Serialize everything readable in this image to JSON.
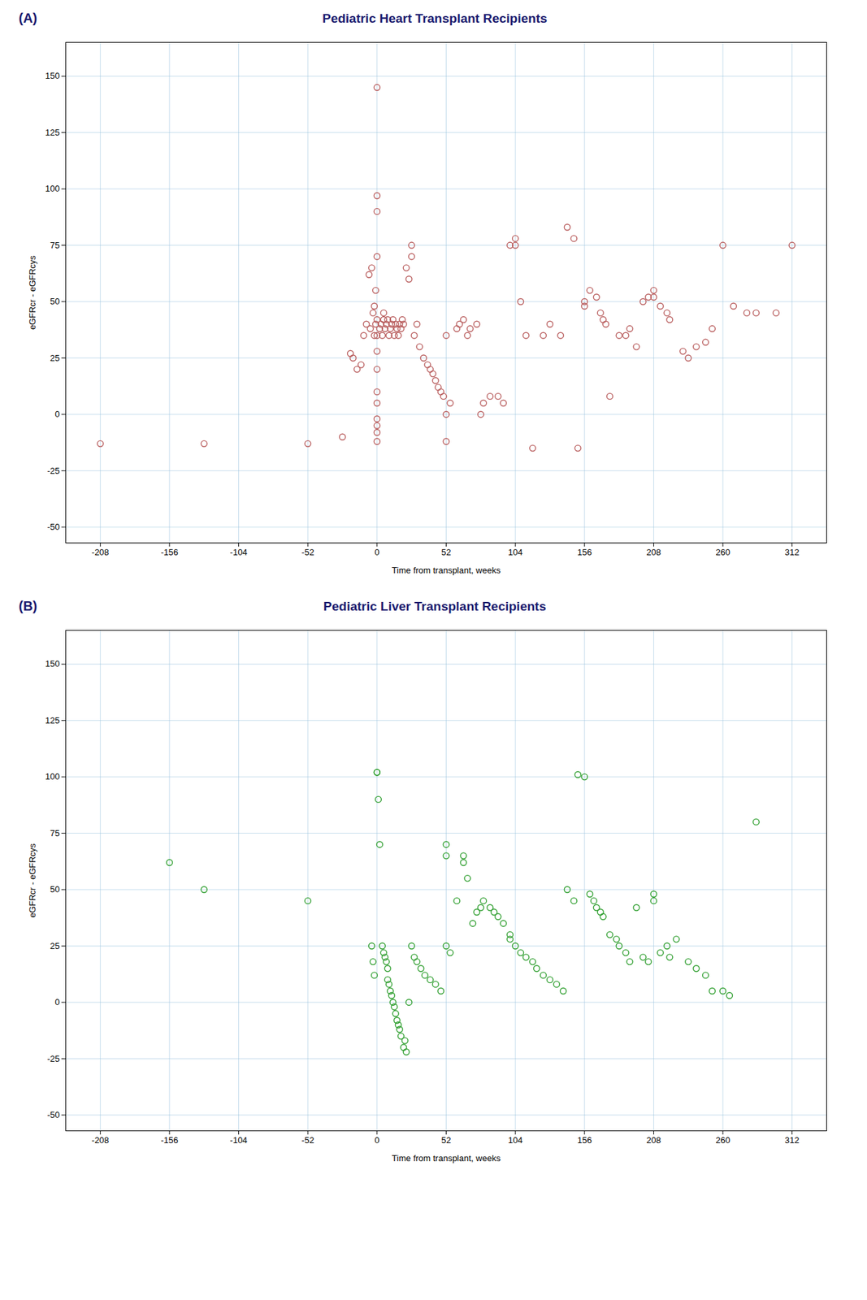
{
  "chart_data": [
    {
      "type": "scatter",
      "title": "Pediatric Heart Transplant Recipients",
      "annotations": [
        "(A)"
      ],
      "xlabel": "Time from transplant, weeks",
      "ylabel": "eGFRcr - eGFRcys",
      "xlim": [
        -234,
        338
      ],
      "ylim": [
        -57,
        165
      ],
      "xticks": [
        -208,
        -156,
        -104,
        -52,
        0,
        52,
        104,
        156,
        208,
        260,
        312
      ],
      "yticks": [
        -50,
        -25,
        0,
        25,
        50,
        75,
        100,
        125,
        150
      ],
      "grid": true,
      "color": "#b85c5c",
      "marker": "circle",
      "x": [
        -208,
        -130,
        -52,
        -26,
        -20,
        -18,
        -15,
        -12,
        -10,
        -8,
        -6,
        -5,
        -4,
        -3,
        -2,
        -2,
        -1,
        -1,
        0,
        0,
        0,
        0,
        0,
        0,
        0,
        0,
        0,
        0,
        0,
        0,
        0,
        0,
        2,
        3,
        4,
        5,
        5,
        6,
        7,
        8,
        9,
        10,
        11,
        12,
        13,
        14,
        15,
        16,
        17,
        18,
        19,
        20,
        22,
        24,
        26,
        26,
        28,
        30,
        32,
        35,
        38,
        40,
        42,
        44,
        46,
        48,
        50,
        52,
        52,
        52,
        55,
        60,
        62,
        65,
        68,
        70,
        75,
        78,
        80,
        85,
        91,
        95,
        100,
        104,
        104,
        108,
        112,
        117,
        125,
        130,
        138,
        143,
        148,
        151,
        156,
        156,
        160,
        165,
        168,
        170,
        172,
        175,
        182,
        187,
        190,
        195,
        200,
        204,
        208,
        208,
        213,
        218,
        220,
        230,
        234,
        240,
        247,
        252,
        260,
        268,
        278,
        285,
        300,
        312
      ],
      "values": [
        -13,
        -13,
        -13,
        -10,
        27,
        25,
        20,
        22,
        35,
        40,
        62,
        38,
        65,
        45,
        35,
        48,
        40,
        55,
        145,
        97,
        90,
        70,
        42,
        35,
        28,
        20,
        10,
        5,
        -2,
        -5,
        -8,
        -12,
        38,
        40,
        35,
        42,
        45,
        38,
        40,
        42,
        35,
        38,
        40,
        42,
        35,
        40,
        38,
        35,
        40,
        38,
        42,
        40,
        65,
        60,
        70,
        75,
        35,
        40,
        30,
        25,
        22,
        20,
        18,
        15,
        12,
        10,
        8,
        35,
        0,
        -12,
        5,
        38,
        40,
        42,
        35,
        38,
        40,
        0,
        5,
        8,
        8,
        5,
        75,
        75,
        78,
        50,
        35,
        -15,
        35,
        40,
        35,
        83,
        78,
        -15,
        50,
        48,
        55,
        52,
        45,
        42,
        40,
        8,
        35,
        35,
        38,
        30,
        50,
        52,
        55,
        52,
        48,
        45,
        42,
        28,
        25,
        30,
        32,
        38,
        75,
        48,
        45,
        45,
        45,
        75
      ]
    },
    {
      "type": "scatter",
      "title": "Pediatric Liver Transplant Recipients",
      "annotations": [
        "(B)"
      ],
      "xlabel": "Time from transplant, weeks",
      "ylabel": "eGFRcr - eGFRcys",
      "xlim": [
        -234,
        338
      ],
      "ylim": [
        -57,
        165
      ],
      "xticks": [
        -208,
        -156,
        -104,
        -52,
        0,
        52,
        104,
        156,
        208,
        260,
        312
      ],
      "yticks": [
        -50,
        -25,
        0,
        25,
        50,
        75,
        100,
        125,
        150
      ],
      "grid": true,
      "color": "#2e9e2e",
      "marker": "circle",
      "x": [
        -156,
        -130,
        -52,
        -4,
        -3,
        -2,
        0,
        0,
        1,
        2,
        4,
        5,
        6,
        7,
        8,
        8,
        9,
        10,
        11,
        12,
        13,
        14,
        15,
        16,
        17,
        18,
        20,
        21,
        22,
        24,
        26,
        28,
        30,
        33,
        36,
        40,
        44,
        48,
        52,
        52,
        52,
        55,
        60,
        65,
        65,
        68,
        72,
        75,
        78,
        80,
        85,
        88,
        91,
        95,
        100,
        100,
        104,
        108,
        112,
        117,
        120,
        125,
        130,
        135,
        140,
        143,
        148,
        151,
        156,
        160,
        163,
        165,
        168,
        170,
        175,
        180,
        182,
        187,
        190,
        195,
        200,
        204,
        208,
        208,
        213,
        218,
        220,
        225,
        234,
        240,
        247,
        252,
        260,
        265,
        285
      ],
      "values": [
        62,
        50,
        45,
        25,
        18,
        12,
        102,
        102,
        90,
        70,
        25,
        22,
        20,
        18,
        15,
        10,
        8,
        5,
        3,
        0,
        -2,
        -5,
        -8,
        -10,
        -12,
        -15,
        -20,
        -17,
        -22,
        0,
        25,
        20,
        18,
        15,
        12,
        10,
        8,
        5,
        70,
        65,
        25,
        22,
        45,
        65,
        62,
        55,
        35,
        40,
        42,
        45,
        42,
        40,
        38,
        35,
        30,
        28,
        25,
        22,
        20,
        18,
        15,
        12,
        10,
        8,
        5,
        50,
        45,
        101,
        100,
        48,
        45,
        42,
        40,
        38,
        30,
        28,
        25,
        22,
        18,
        42,
        20,
        18,
        48,
        45,
        22,
        25,
        20,
        28,
        18,
        15,
        12,
        5,
        5,
        3,
        80
      ]
    }
  ]
}
